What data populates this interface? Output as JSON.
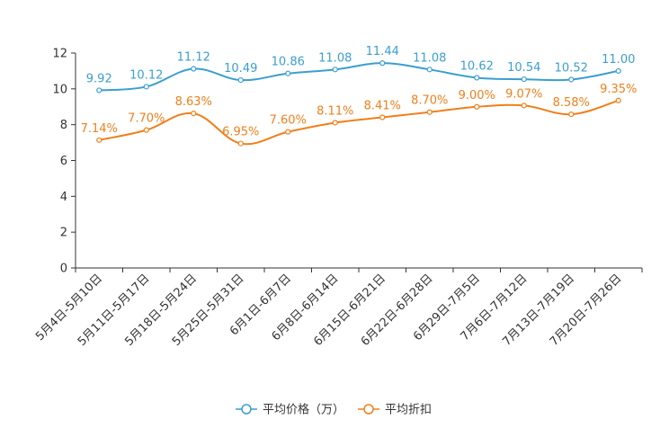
{
  "chart_data": {
    "type": "line",
    "title": "",
    "xlabel": "",
    "ylabel": "",
    "ylim": [
      0,
      12
    ],
    "yticks": [
      0,
      2,
      4,
      6,
      8,
      10,
      12
    ],
    "grid": false,
    "legend_position": "bottom",
    "categories": [
      "5月4日-5月10日",
      "5月11日-5月17日",
      "5月18日-5月24日",
      "5月25日-5月31日",
      "6月1日-6月7日",
      "6月8日-6月14日",
      "6月15日-6月21日",
      "6月22日-6月28日",
      "6月29日-7月5日",
      "7月6日-7月12日",
      "7月13日-7月19日",
      "7月20日-7月26日"
    ],
    "series": [
      {
        "name": "平均价格（万）",
        "color": "#3a9fcf",
        "values": [
          9.92,
          10.12,
          11.12,
          10.49,
          10.86,
          11.08,
          11.44,
          11.08,
          10.62,
          10.54,
          10.52,
          11.0
        ],
        "labels": [
          "9.92",
          "10.12",
          "11.12",
          "10.49",
          "10.86",
          "11.08",
          "11.44",
          "11.08",
          "10.62",
          "10.54",
          "10.52",
          "11.00"
        ]
      },
      {
        "name": "平均折扣",
        "color": "#f07f1b",
        "values": [
          7.14,
          7.7,
          8.63,
          6.95,
          7.6,
          8.11,
          8.41,
          8.7,
          9.0,
          9.07,
          8.58,
          9.35
        ],
        "labels": [
          "7.14%",
          "7.70%",
          "8.63%",
          "6.95%",
          "7.60%",
          "8.11%",
          "8.41%",
          "8.70%",
          "9.00%",
          "9.07%",
          "8.58%",
          "9.35%"
        ]
      }
    ]
  }
}
